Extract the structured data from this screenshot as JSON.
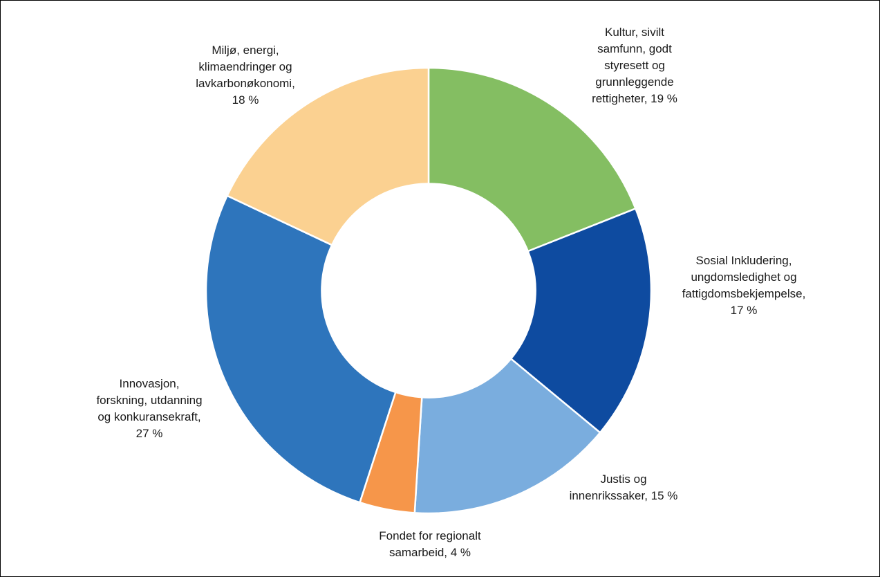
{
  "chart_data": {
    "type": "pie",
    "title": "",
    "unit": "%",
    "start_angle_deg": 0,
    "hole_fraction": 0.48,
    "slices": [
      {
        "label": [
          "Kultur, sivilt",
          "samfunn, godt",
          "styresett og",
          "grunnleggende",
          "rettigheter, 19 %"
        ],
        "value": 19,
        "color": "#84BE62"
      },
      {
        "label": [
          "Sosial Inkludering,",
          "ungdomsledighet og",
          "fattigdomsbekjempelse,",
          "17 %"
        ],
        "value": 17,
        "color": "#0E4BA0"
      },
      {
        "label": [
          "Justis og",
          "innenrikssaker, 15 %"
        ],
        "value": 15,
        "color": "#7AADDE"
      },
      {
        "label": [
          "Fondet for regionalt",
          "samarbeid, 4 %"
        ],
        "value": 4,
        "color": "#F6964A"
      },
      {
        "label": [
          "Innovasjon,",
          "forskning, utdanning",
          "og konkuransekraft,",
          "27 %"
        ],
        "value": 27,
        "color": "#2E75BC"
      },
      {
        "label": [
          "Miljø, energi,",
          "klimaendringer og",
          "lavkarbonøkonomi,",
          "18 %"
        ],
        "value": 18,
        "color": "#FBD191"
      }
    ]
  }
}
